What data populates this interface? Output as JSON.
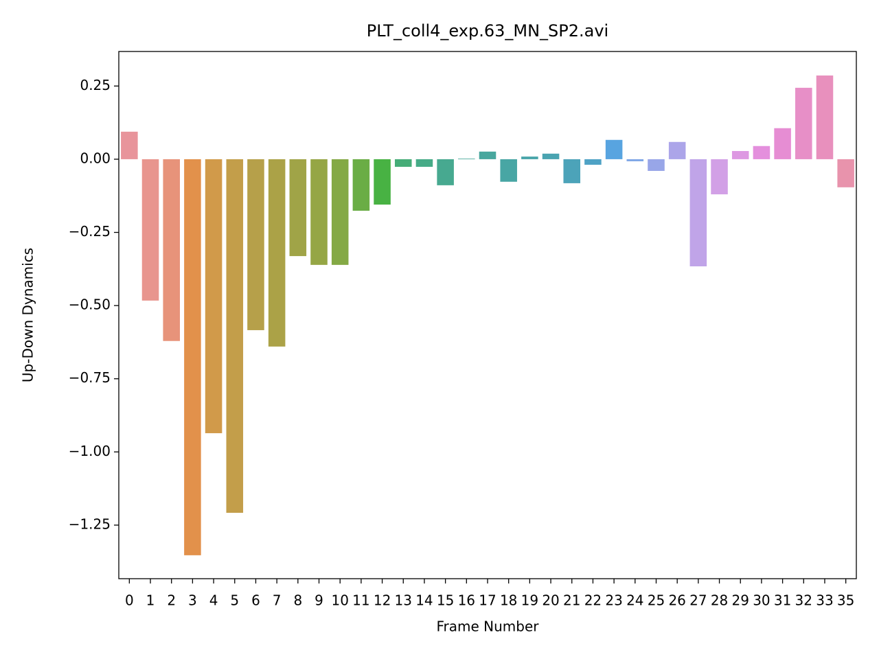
{
  "chart_data": {
    "type": "bar",
    "title": "PLT_coll4_exp.63_MN_SP2.avi",
    "x_label": "Frame Number",
    "y_label": "Up-Down Dynamics",
    "categories": [
      "0",
      "1",
      "2",
      "3",
      "4",
      "5",
      "6",
      "7",
      "8",
      "9",
      "10",
      "11",
      "12",
      "13",
      "14",
      "15",
      "16",
      "17",
      "18",
      "19",
      "20",
      "21",
      "22",
      "23",
      "24",
      "25",
      "26",
      "27",
      "28",
      "29",
      "30",
      "31",
      "32",
      "33",
      "35"
    ],
    "values": [
      0.094,
      -0.483,
      -0.621,
      -1.353,
      -0.936,
      -1.208,
      -0.584,
      -0.64,
      -0.331,
      -0.361,
      -0.361,
      -0.176,
      -0.155,
      -0.026,
      -0.026,
      -0.089,
      0.002,
      0.026,
      -0.077,
      0.009,
      0.019,
      -0.082,
      -0.019,
      0.066,
      -0.007,
      -0.04,
      0.059,
      -0.366,
      -0.12,
      0.028,
      0.045,
      0.106,
      0.244,
      0.286,
      -0.096
    ],
    "colors": [
      "#e8949b",
      "#e8958e",
      "#e7937a",
      "#e2914b",
      "#d19a4a",
      "#c39e4a",
      "#b6a04a",
      "#aba247",
      "#a0a447",
      "#95a645",
      "#84a945",
      "#6aad45",
      "#48b243",
      "#46ad78",
      "#46ab87",
      "#47a990",
      "#47a898",
      "#48a79e",
      "#48a6a4",
      "#49a5aa",
      "#4aa4b1",
      "#4ca3b9",
      "#4fa2c5",
      "#58a4e0",
      "#7ea6e6",
      "#98a6e8",
      "#aca5e9",
      "#c0a4e8",
      "#d2a0e6",
      "#dd98e2",
      "#e48fdd",
      "#e68dd3",
      "#e78fc7",
      "#e890bd",
      "#e893ac"
    ],
    "ylim": [
      -1.433,
      0.368
    ],
    "yticks": [
      {
        "value": 0.25,
        "label": "0.25"
      },
      {
        "value": 0,
        "label": "0.00"
      },
      {
        "value": -0.25,
        "label": "−0.25"
      },
      {
        "value": -0.5,
        "label": "−0.50"
      },
      {
        "value": -0.75,
        "label": "−0.75"
      },
      {
        "value": -1,
        "label": "−1.00"
      },
      {
        "value": -1.25,
        "label": "−1.25"
      }
    ],
    "grid": false
  }
}
